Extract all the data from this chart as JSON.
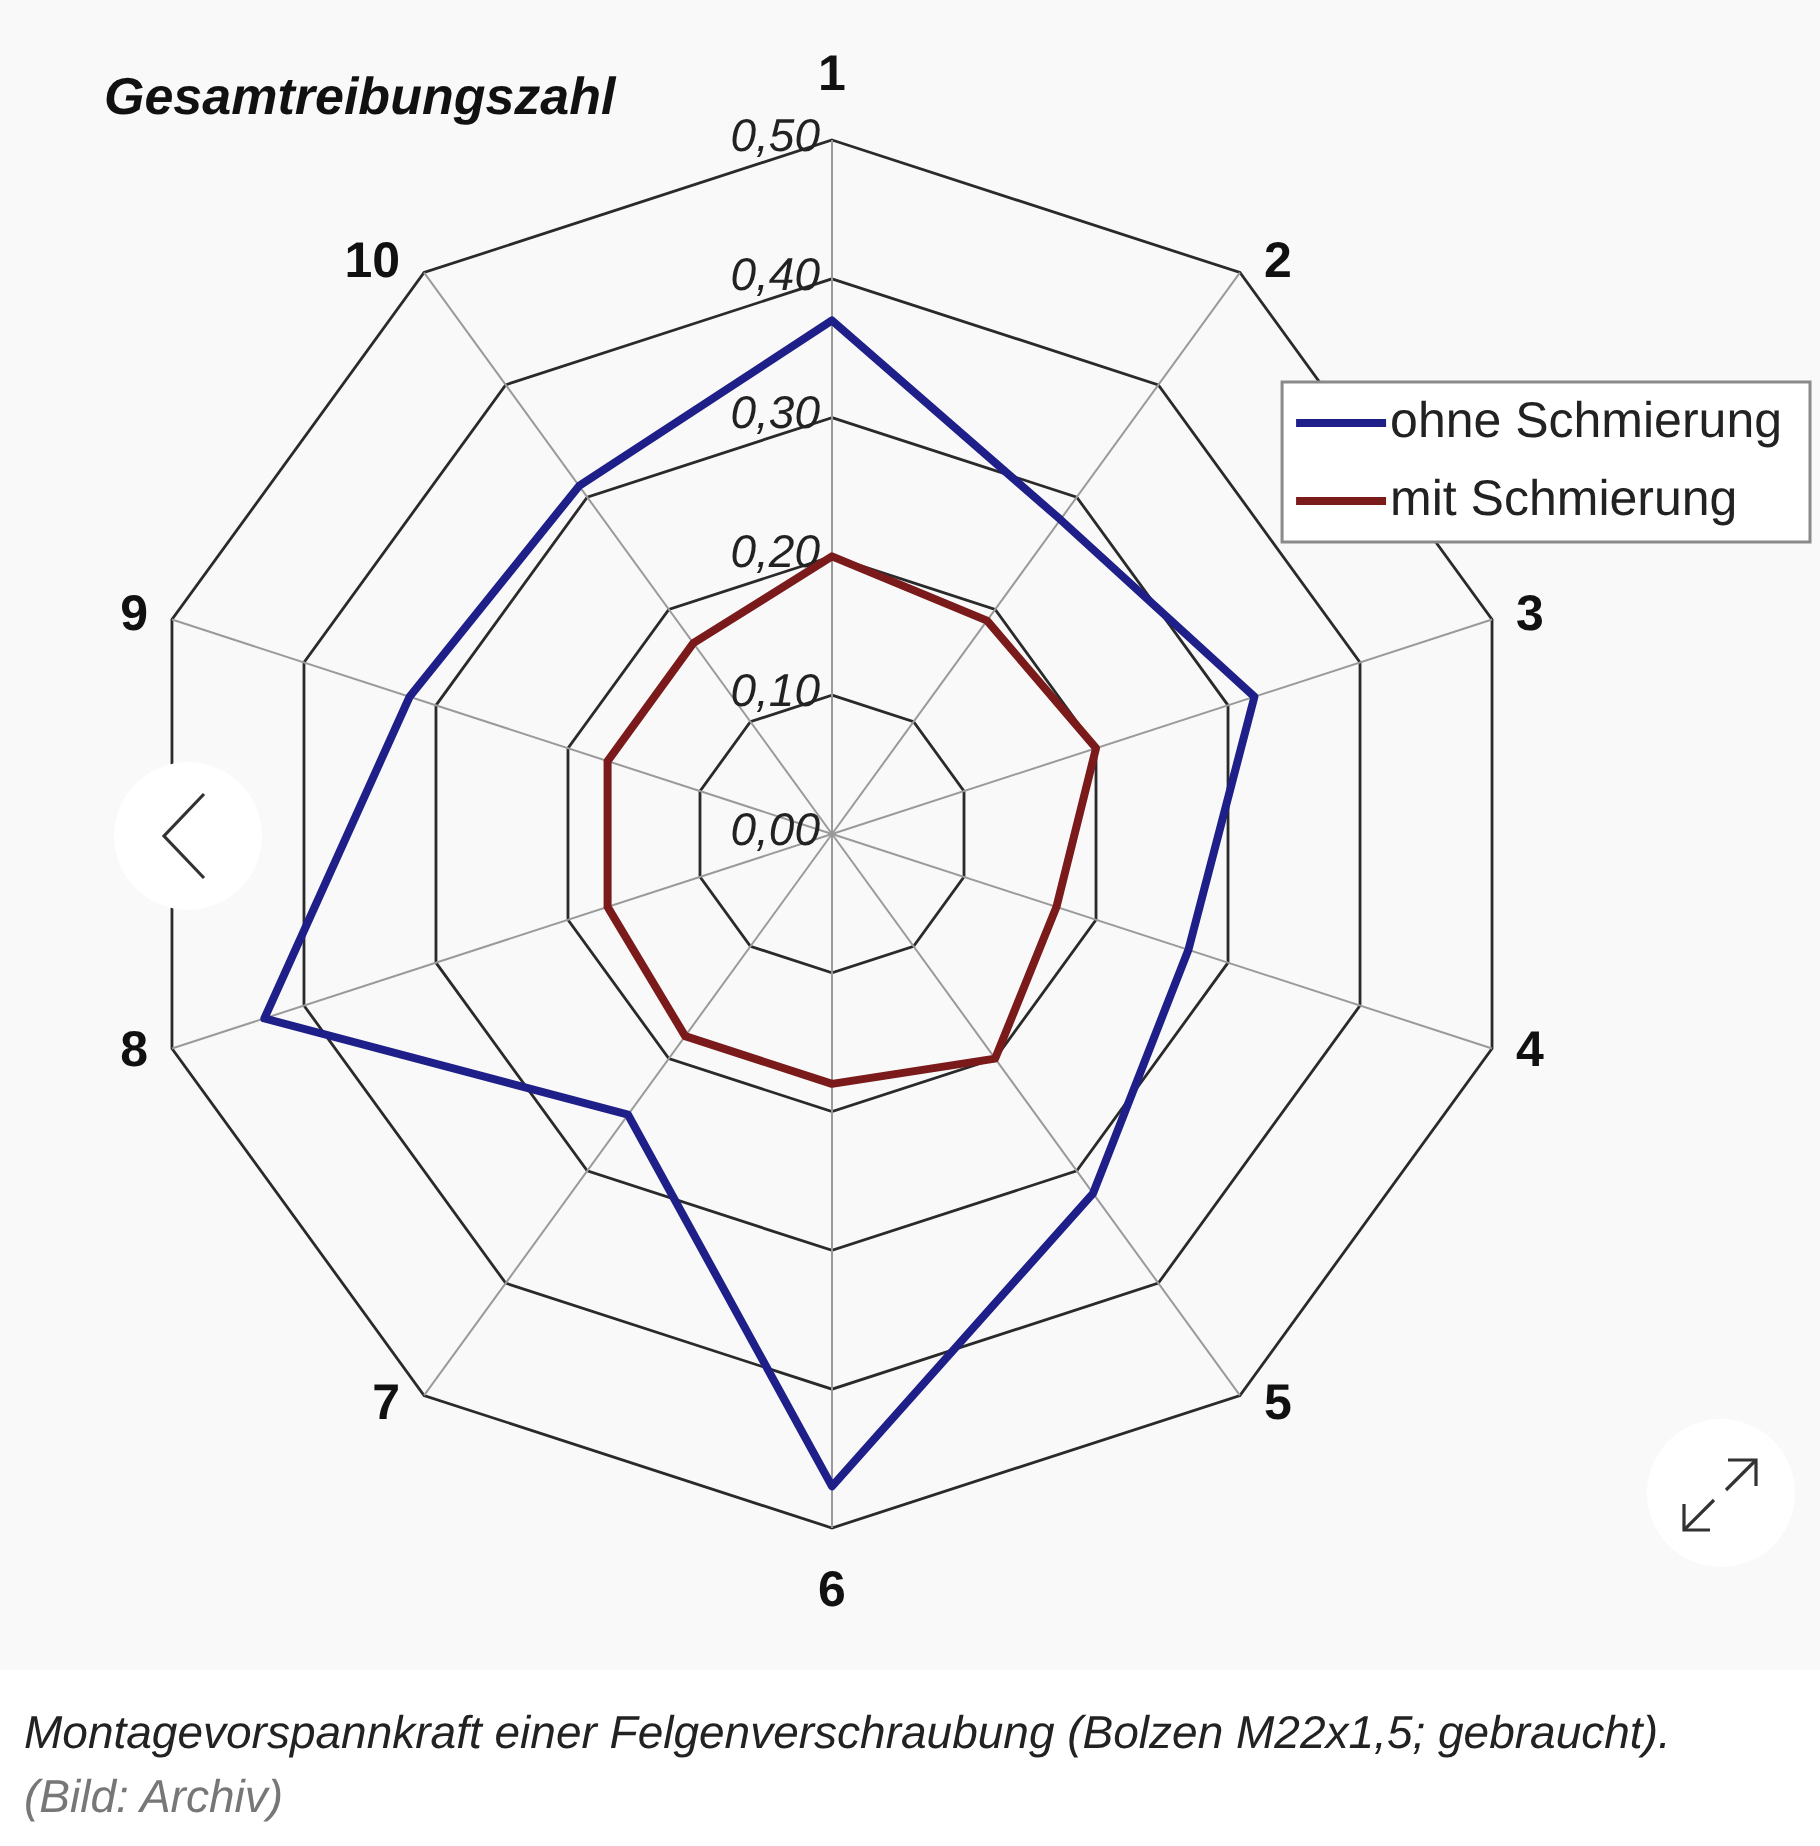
{
  "chart_data": {
    "type": "radar",
    "ylabel": "Gesamtreibungszahl",
    "categories": [
      "1",
      "2",
      "3",
      "4",
      "5",
      "6",
      "7",
      "8",
      "9",
      "10"
    ],
    "series": [
      {
        "name": "ohne Schmierung",
        "color": "#1f1f8a",
        "values": [
          0.37,
          0.28,
          0.32,
          0.27,
          0.32,
          0.47,
          0.25,
          0.43,
          0.32,
          0.31
        ]
      },
      {
        "name": "mit Schmierung",
        "color": "#7a1a1a",
        "values": [
          0.2,
          0.19,
          0.2,
          0.17,
          0.2,
          0.18,
          0.18,
          0.17,
          0.17,
          0.17
        ]
      }
    ],
    "ylim": [
      0,
      0.5
    ],
    "yticks": [
      {
        "value": 0,
        "label": "0,00"
      },
      {
        "value": 0.1,
        "label": "0,10"
      },
      {
        "value": 0.2,
        "label": "0,20"
      },
      {
        "value": 0.3,
        "label": "0,30"
      },
      {
        "value": 0.4,
        "label": "0,40"
      },
      {
        "value": 0.5,
        "label": "0,50"
      }
    ],
    "grid": true,
    "legend": "top right",
    "marker": "none",
    "annotations": [
      "Montagevorspannkraft einer Felgenverschraubung (Bolzen M22x1,5; gebraucht).",
      "(Bild: Archiv)"
    ]
  }
}
